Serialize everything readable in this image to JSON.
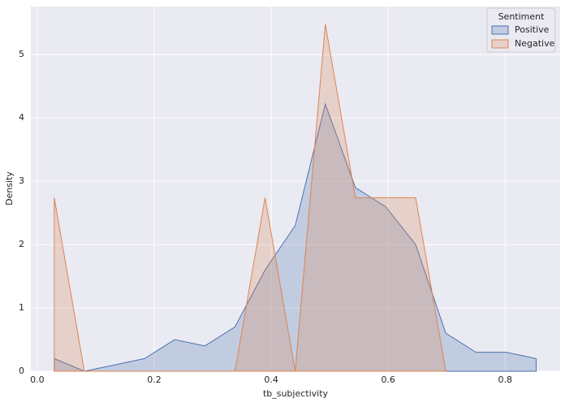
{
  "chart_data": {
    "type": "poly-histogram",
    "xlabel": "tb_subjectivity",
    "ylabel": "Density",
    "legend_title": "Sentiment",
    "legend_position": "upper right",
    "grid": true,
    "xlim": [
      -0.011,
      0.894
    ],
    "ylim": [
      0,
      5.76
    ],
    "xticks": [
      {
        "value": 0,
        "label": "0.0"
      },
      0.2,
      0.4,
      0.6,
      0.8
    ],
    "yticks": [
      0,
      1,
      2,
      3,
      4,
      5
    ],
    "series": [
      {
        "name": "Positive",
        "color": "#4c72b0",
        "x": [
          0.029,
          0.0805,
          0.132,
          0.1835,
          0.235,
          0.2865,
          0.338,
          0.3895,
          0.441,
          0.4925,
          0.544,
          0.5955,
          0.647,
          0.6985,
          0.75,
          0.8015,
          0.853
        ],
        "values": [
          0.2,
          0,
          0.1,
          0.2,
          0.5,
          0.4,
          0.7,
          1.6,
          2.3,
          4.22,
          2.9,
          2.6,
          2.0,
          0.6,
          0.3,
          0.3,
          0.2
        ]
      },
      {
        "name": "Negative",
        "color": "#dd8452",
        "x": [
          0.029,
          0.0805,
          0.132,
          0.1835,
          0.235,
          0.2865,
          0.338,
          0.3895,
          0.441,
          0.4925,
          0.544,
          0.5955,
          0.647,
          0.6985
        ],
        "values": [
          2.74,
          0,
          0,
          0,
          0,
          0,
          0,
          2.74,
          0,
          5.48,
          2.74,
          2.74,
          2.74,
          0
        ]
      }
    ]
  }
}
